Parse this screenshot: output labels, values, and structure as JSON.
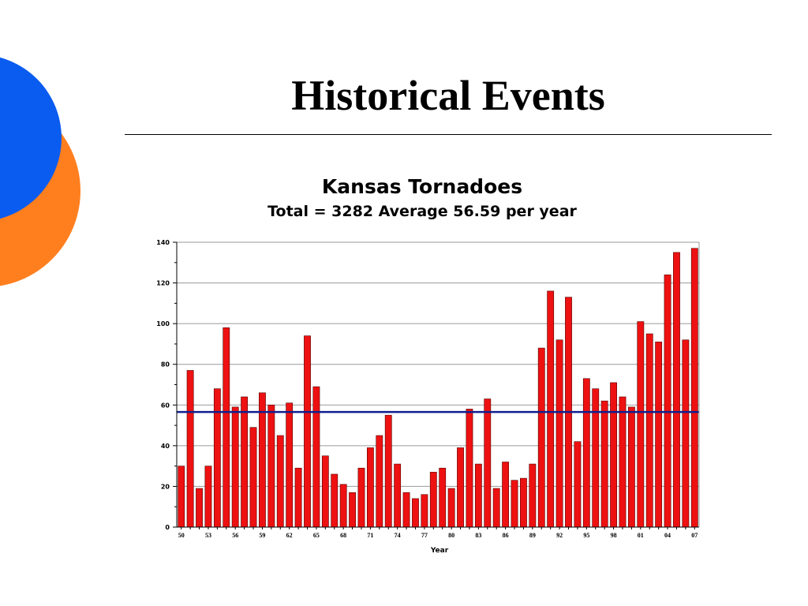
{
  "slide": {
    "title": "Historical Events",
    "colors": {
      "decor_blue": "#0a5cf0",
      "decor_orange": "#ff7f1f"
    }
  },
  "chart_data": {
    "type": "bar",
    "title": "Kansas Tornadoes",
    "subtitle": "Total = 3282  Average 56.59 per year",
    "xlabel": "Year",
    "ylabel": "",
    "ylim": [
      0,
      140
    ],
    "yticks": [
      0,
      20,
      40,
      60,
      80,
      100,
      120,
      140
    ],
    "grid": true,
    "legend": "none",
    "categories": [
      "50",
      "51",
      "52",
      "53",
      "54",
      "55",
      "56",
      "57",
      "58",
      "59",
      "60",
      "61",
      "62",
      "63",
      "64",
      "65",
      "66",
      "67",
      "68",
      "69",
      "70",
      "71",
      "72",
      "73",
      "74",
      "75",
      "76",
      "77",
      "78",
      "79",
      "80",
      "81",
      "82",
      "83",
      "84",
      "85",
      "86",
      "87",
      "88",
      "89",
      "90",
      "91",
      "92",
      "93",
      "94",
      "95",
      "96",
      "97",
      "98",
      "99",
      "00",
      "01",
      "02",
      "03",
      "04",
      "05",
      "06",
      "07"
    ],
    "x_tick_labels": [
      "50",
      "53",
      "56",
      "59",
      "62",
      "65",
      "68",
      "71",
      "74",
      "77",
      "80",
      "83",
      "86",
      "89",
      "92",
      "95",
      "98",
      "01",
      "04",
      "07"
    ],
    "values": [
      30,
      77,
      19,
      30,
      68,
      98,
      59,
      64,
      49,
      66,
      60,
      45,
      61,
      29,
      94,
      69,
      35,
      26,
      21,
      17,
      29,
      39,
      45,
      55,
      31,
      17,
      14,
      16,
      27,
      29,
      19,
      39,
      58,
      31,
      63,
      19,
      32,
      23,
      24,
      31,
      88,
      116,
      92,
      113,
      42,
      73,
      68,
      62,
      71,
      64,
      59,
      101,
      95,
      91,
      124,
      135,
      92,
      137
    ],
    "average": 56.59,
    "bar_color": "#ee1111",
    "bar_edge_color": "#550000",
    "average_line_color": "#0f1f8f"
  }
}
